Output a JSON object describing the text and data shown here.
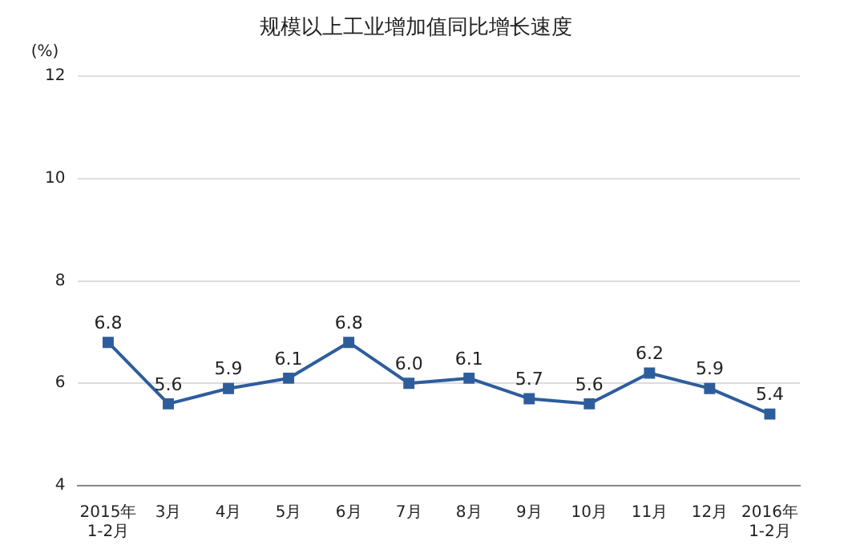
{
  "chart_data": {
    "type": "line",
    "title": "规模以上工业增加值同比增长速度",
    "ylabel": "(%)",
    "categories": [
      "2015年\n1-2月",
      "3月",
      "4月",
      "5月",
      "6月",
      "7月",
      "8月",
      "9月",
      "10月",
      "11月",
      "12月",
      "2016年\n1-2月"
    ],
    "series": [
      {
        "color": "#2e5d9c",
        "values": [
          6.8,
          5.6,
          5.9,
          6.1,
          6.8,
          6.0,
          6.1,
          5.7,
          5.6,
          6.2,
          5.9,
          5.4
        ],
        "value_labels": [
          "6.8",
          "5.6",
          "5.9",
          "6.1",
          "6.8",
          "6.0",
          "6.1",
          "5.7",
          "5.6",
          "6.2",
          "5.9",
          "5.4"
        ]
      }
    ],
    "ylim": [
      4,
      12
    ],
    "yticks": [
      4,
      6,
      8,
      10,
      12
    ],
    "grid": "y",
    "marker": "square",
    "line_style": "solid",
    "legend": false
  }
}
